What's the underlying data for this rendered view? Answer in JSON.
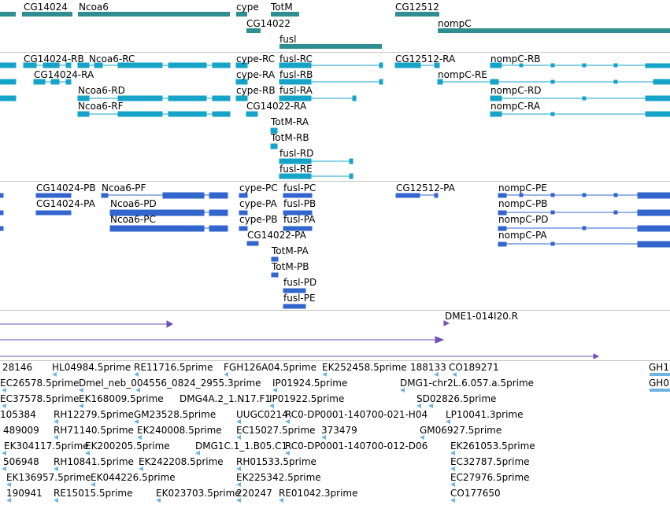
{
  "colors": {
    "gene": "#2f8e91",
    "transcript": "#15a3c8",
    "protein": "#3366cc",
    "clone": "#7050b0",
    "est": "#6fb4e0",
    "separator": "#c8c8c8"
  },
  "genes": {
    "labels": [
      "CG14024",
      "Ncoa6",
      "cype",
      "TotM",
      "CG14022",
      "fusl",
      "CG12512",
      "nompC"
    ]
  },
  "transcripts": {
    "labels": [
      "CG14024-RB",
      "Ncoa6-RC",
      "cype-RC",
      "fusl-RC",
      "CG12512-RA",
      "nompC-RB",
      "CG14024-RA",
      "cype-RA",
      "fusl-RB",
      "nompC-RE",
      "Ncoa6-RD",
      "cype-RB",
      "fusl-RA",
      "nompC-RD",
      "Ncoa6-RF",
      "CG14022-RA",
      "nompC-RA",
      "TotM-RA",
      "TotM-RB",
      "fusl-RD",
      "fusl-RE"
    ]
  },
  "proteins": {
    "labels": [
      "CG14024-PB",
      "Ncoa6-PF",
      "cype-PC",
      "fusl-PC",
      "CG12512-PA",
      "nompC-PE",
      "CG14024-PA",
      "Ncoa6-PD",
      "cype-PA",
      "fusl-PB",
      "nompC-PB",
      "Ncoa6-PC",
      "cype-PB",
      "fusl-PA",
      "nompC-PD",
      "CG14022-PA",
      "nompC-PA",
      "TotM-PA",
      "TotM-PB",
      "fusl-PD",
      "fusl-PE"
    ]
  },
  "clones": {
    "labels": [
      "DME1-014I20.R"
    ]
  },
  "ests": {
    "labels": [
      "28146",
      "HL04984.5prime",
      "RE11716.5prime",
      "FGH126A04.5prime",
      "EK252458.5prime",
      "188133",
      "CO189271",
      "GH1",
      "EC26578.5prime",
      "Dmel_neb_004556_0824_2955.3prime",
      "IP01924.5prime",
      "DMG1-chr2L.6.057.a.5prime",
      "GH0",
      "EC37578.5prime",
      "EK168009.5prime",
      "IP01922.5prime",
      "SD02826.5prime",
      "105384",
      "RH12279.5prime",
      "GM23528.5prime",
      "UUGC0214",
      "RC0-DP0001-140700-021-H04",
      "LP10041.3prime",
      "489009",
      "RH71140.5prime",
      "EK240008.5prime",
      "EC15027.5prime",
      "373479",
      "GM06927.5prime",
      "EK304117.5prime",
      "EK200205.5prime",
      "DMG1C.1_1.B05.C1",
      "RC0-DP0001-140700-012-D06",
      "EK261053.5prime",
      "506948",
      "RH10841.5prime",
      "EK242208.5prime",
      "RH01533.5prime",
      "EC32787.5prime",
      "EK136957.5prime",
      "EK044226.5prime",
      "EK225342.5prime",
      "EC27976.5prime",
      "190941",
      "RE15015.5prime",
      "EK023703.5prime",
      "220247",
      "RE01042.3prime",
      "CO177650",
      "DMG4A.2_1.N17.F1"
    ]
  }
}
